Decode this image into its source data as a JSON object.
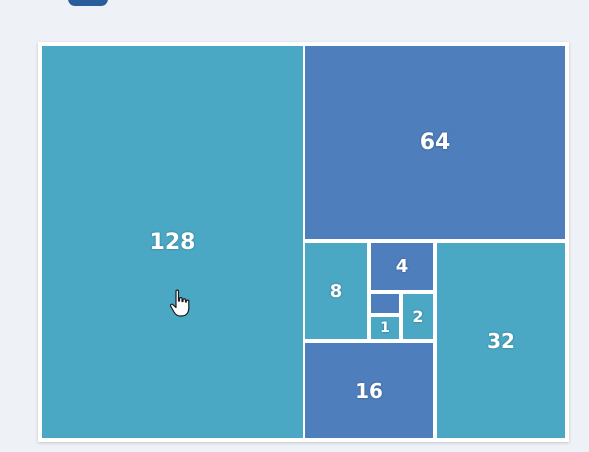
{
  "colors": {
    "teal": "#4aa8c4",
    "blue": "#4f7ebd",
    "background": "#eef1f5",
    "border": "#ffffff"
  },
  "tiles": [
    {
      "id": "128",
      "label": "128",
      "value": 128,
      "color": "teal"
    },
    {
      "id": "64",
      "label": "64",
      "value": 64,
      "color": "blue"
    },
    {
      "id": "32",
      "label": "32",
      "value": 32,
      "color": "teal"
    },
    {
      "id": "16",
      "label": "16",
      "value": 16,
      "color": "blue"
    },
    {
      "id": "8",
      "label": "8",
      "value": 8,
      "color": "teal"
    },
    {
      "id": "4",
      "label": "4",
      "value": 4,
      "color": "blue"
    },
    {
      "id": "2",
      "label": "2",
      "value": 2,
      "color": "teal"
    },
    {
      "id": "1",
      "label": "1",
      "value": 1,
      "color": "teal"
    },
    {
      "id": "1b",
      "label": "",
      "value": 1,
      "color": "blue"
    }
  ],
  "cursor_icon": "hand-pointer-icon"
}
